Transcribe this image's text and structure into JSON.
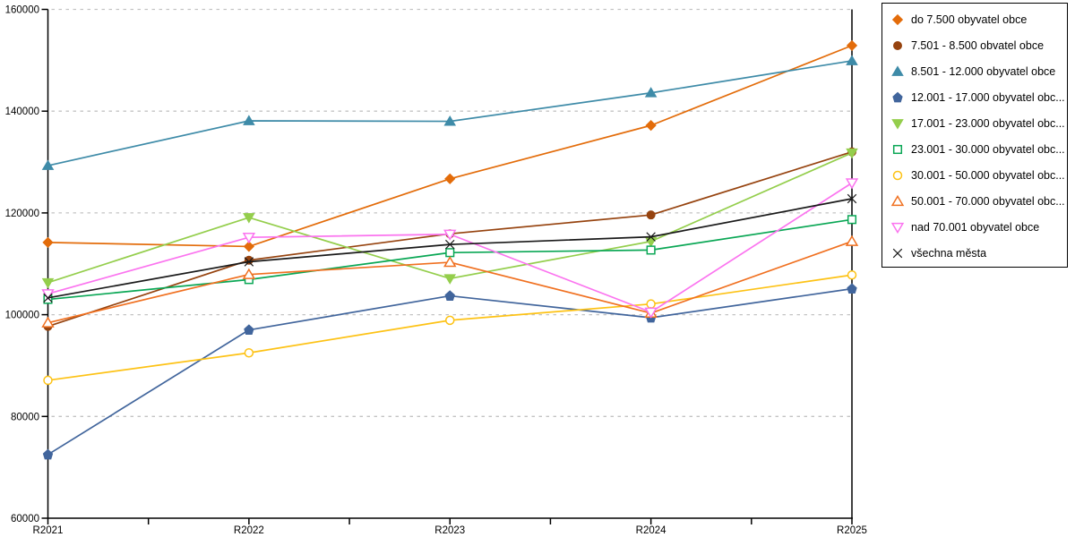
{
  "chart_data": {
    "type": "line",
    "title": "",
    "xlabel": "",
    "ylabel": "",
    "categories": [
      "R2021",
      "R2022",
      "R2023",
      "R2024",
      "R2025"
    ],
    "yticks": [
      60000,
      80000,
      100000,
      120000,
      140000,
      160000
    ],
    "ylim": [
      60000,
      160000
    ],
    "grid": "horizontal-dashed",
    "legend_position": "top-right",
    "minor_x_ticks_between_years": true,
    "series": [
      {
        "name": "do 7.500 obyvatel obce",
        "marker": "diamond",
        "fill": "filled",
        "color": "#E36C0A",
        "values": [
          114200,
          113400,
          126700,
          137200,
          152900
        ]
      },
      {
        "name": "7.501 - 8.500 obvatel obce",
        "marker": "circle",
        "fill": "filled",
        "color": "#96430F",
        "values": [
          97700,
          110700,
          115900,
          119600,
          132000
        ]
      },
      {
        "name": "8.501 - 12.000 obyvatel obce",
        "marker": "triangle-up",
        "fill": "filled",
        "color": "#3E8BA8",
        "values": [
          129300,
          138100,
          138000,
          143600,
          149900
        ]
      },
      {
        "name": "12.001 - 17.000 obyvatel obc...",
        "marker": "pentagon",
        "fill": "filled",
        "color": "#41659C",
        "values": [
          72500,
          97000,
          103700,
          99400,
          105100
        ]
      },
      {
        "name": "17.001 - 23.000 obyvatel obc...",
        "marker": "triangle-down",
        "fill": "filled",
        "color": "#94CE4C",
        "values": [
          106300,
          119100,
          107100,
          114400,
          131800
        ]
      },
      {
        "name": "23.001 - 30.000 obyvatel obc...",
        "marker": "square",
        "fill": "open",
        "color": "#0AA755",
        "values": [
          103000,
          106900,
          112200,
          112700,
          118700
        ]
      },
      {
        "name": "30.001 - 50.000 obyvatel obc...",
        "marker": "circle",
        "fill": "open",
        "color": "#FDC215",
        "values": [
          87100,
          92500,
          98900,
          102100,
          107800
        ]
      },
      {
        "name": "50.001 - 70.000 obyvatel obc...",
        "marker": "triangle-up",
        "fill": "open",
        "color": "#F07020",
        "values": [
          98400,
          107900,
          110300,
          100300,
          114400
        ]
      },
      {
        "name": "nad 70.001 obyvatel obce",
        "marker": "triangle-down",
        "fill": "open",
        "color": "#FB74EF",
        "values": [
          104100,
          115200,
          115800,
          100500,
          125900
        ]
      },
      {
        "name": "všechna města",
        "marker": "x",
        "fill": "line",
        "color": "#1A1A1A",
        "values": [
          103300,
          110400,
          113800,
          115300,
          122800
        ]
      }
    ]
  },
  "colors": {
    "background": "#ffffff",
    "axis": "#000000",
    "gridline": "#C4C4C4",
    "legend_border": "#000000"
  }
}
